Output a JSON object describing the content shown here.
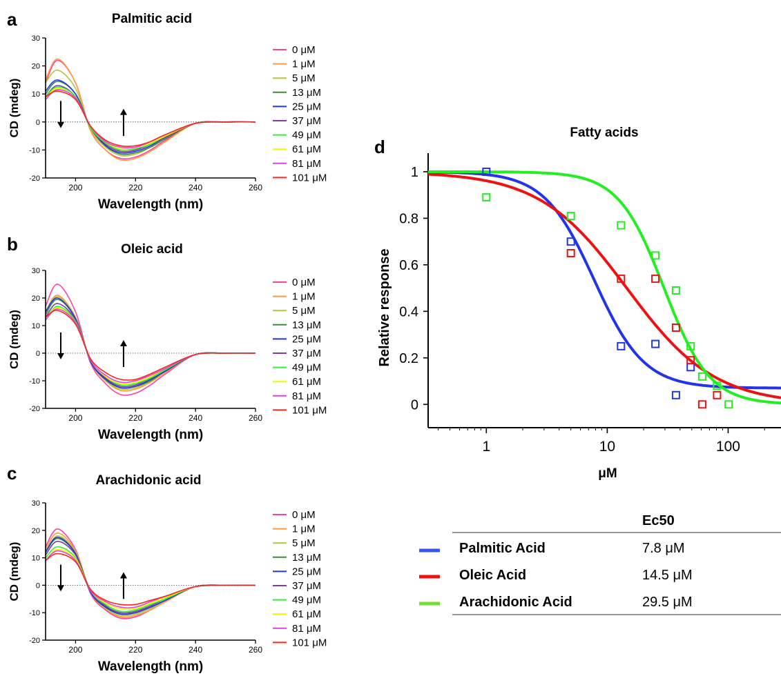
{
  "panels": [
    {
      "letter": "a",
      "title": "Palmitic acid"
    },
    {
      "letter": "b",
      "title": "Oleic acid"
    },
    {
      "letter": "c",
      "title": "Arachidonic acid"
    },
    {
      "letter": "d",
      "title": "Fatty acids"
    }
  ],
  "legend_colors": [
    "#ff3ea5",
    "#ff9a3c",
    "#b8c23a",
    "#3b8a3b",
    "#2233dd",
    "#7a3c9c",
    "#33ee33",
    "#f5f500",
    "#dd44dd",
    "#ff2222"
  ],
  "ec50_table": {
    "header": "Ec50",
    "rows": [
      {
        "name": "Palmitic Acid",
        "value": "7.8 μM",
        "color": "#3355ee"
      },
      {
        "name": "Oleic Acid",
        "value": "14.5 μM",
        "color": "#ee1111"
      },
      {
        "name": "Arachidonic Acid",
        "value": "29.5 μM",
        "color": "#77dd33"
      }
    ]
  },
  "chart_data": [
    {
      "type": "line",
      "panel": "a",
      "title": "Palmitic acid",
      "xlabel": "Wavelength (nm)",
      "ylabel": "CD (mdeg)",
      "xlim": [
        190,
        260
      ],
      "ylim": [
        -20,
        30
      ],
      "xticks": [
        200,
        220,
        240,
        260
      ],
      "yticks": [
        -20,
        -10,
        0,
        10,
        20,
        30
      ],
      "x": [
        190,
        194,
        200,
        205,
        210,
        215,
        220,
        225,
        230,
        240,
        250,
        260
      ],
      "series": [
        {
          "name": "0 μM",
          "values": [
            14,
            22,
            14,
            -3,
            -10,
            -13,
            -12.5,
            -10,
            -6.5,
            -0.5,
            0,
            0
          ]
        },
        {
          "name": "1 μM",
          "values": [
            15,
            22.5,
            14,
            -3,
            -10,
            -13.5,
            -13,
            -10.5,
            -7,
            -0.5,
            0,
            0
          ]
        },
        {
          "name": "5 μM",
          "values": [
            14,
            18.5,
            12,
            -2.5,
            -9,
            -12,
            -11.5,
            -9,
            -6,
            -0.5,
            0,
            0
          ]
        },
        {
          "name": "13 μM",
          "values": [
            10,
            14.5,
            10,
            -2,
            -8.5,
            -11.5,
            -11,
            -9,
            -6,
            -0.5,
            0,
            0
          ]
        },
        {
          "name": "25 μM",
          "values": [
            11,
            15,
            10,
            -2,
            -8.5,
            -11,
            -10.5,
            -8.5,
            -5.5,
            -0.5,
            0,
            0
          ]
        },
        {
          "name": "37 μM",
          "values": [
            9,
            13,
            9,
            -2,
            -8,
            -10.5,
            -10,
            -8,
            -5.5,
            -0.5,
            0,
            0
          ]
        },
        {
          "name": "49 μM",
          "values": [
            9,
            12.5,
            9,
            -2,
            -7.5,
            -10,
            -9.5,
            -8,
            -5,
            -0.5,
            0,
            0
          ]
        },
        {
          "name": "61 μM",
          "values": [
            8.5,
            12,
            8.5,
            -1.5,
            -7,
            -9.5,
            -9,
            -7.5,
            -5,
            -0.5,
            0,
            0
          ]
        },
        {
          "name": "81 μM",
          "values": [
            8,
            11.5,
            8.5,
            -1.5,
            -7,
            -9,
            -9,
            -7,
            -4.5,
            -0.5,
            0,
            0
          ]
        },
        {
          "name": "101 μM",
          "values": [
            9,
            11,
            8,
            -1.5,
            -6.5,
            -8.5,
            -8.5,
            -7,
            -4.5,
            -0.5,
            0,
            0
          ]
        }
      ]
    },
    {
      "type": "line",
      "panel": "b",
      "title": "Oleic acid",
      "xlabel": "Wavelength (nm)",
      "ylabel": "CD (mdeg)",
      "xlim": [
        190,
        260
      ],
      "ylim": [
        -20,
        30
      ],
      "xticks": [
        200,
        220,
        240,
        260
      ],
      "yticks": [
        -20,
        -10,
        0,
        10,
        20,
        30
      ],
      "x": [
        190,
        194,
        200,
        205,
        210,
        215,
        220,
        225,
        230,
        240,
        250,
        260
      ],
      "series": [
        {
          "name": "0 μM",
          "values": [
            17,
            25,
            15,
            -3.5,
            -11,
            -15,
            -14.5,
            -11.5,
            -7.5,
            -0.5,
            0,
            0
          ]
        },
        {
          "name": "1 μM",
          "values": [
            15,
            21,
            13,
            -3,
            -10,
            -13.5,
            -13,
            -10.5,
            -7,
            -0.5,
            0,
            0
          ]
        },
        {
          "name": "5 μM",
          "values": [
            15,
            20.5,
            13,
            -3,
            -10,
            -13,
            -12.5,
            -10,
            -6.5,
            -0.5,
            0,
            0
          ]
        },
        {
          "name": "13 μM",
          "values": [
            14,
            19.5,
            12.5,
            -3,
            -9.5,
            -12.5,
            -12,
            -10,
            -6.5,
            -0.5,
            0,
            0
          ]
        },
        {
          "name": "25 μM",
          "values": [
            15,
            20,
            12.5,
            -3,
            -9.5,
            -12.5,
            -12,
            -9.5,
            -6.5,
            -0.5,
            0,
            0
          ]
        },
        {
          "name": "37 μM",
          "values": [
            13,
            18,
            12,
            -2.5,
            -9,
            -12,
            -11.5,
            -9,
            -6,
            -0.5,
            0,
            0
          ]
        },
        {
          "name": "49 μM",
          "values": [
            12,
            17,
            11.5,
            -2.5,
            -8.5,
            -11.5,
            -11,
            -9,
            -6,
            -0.5,
            0,
            0
          ]
        },
        {
          "name": "61 μM",
          "values": [
            12,
            16.5,
            11,
            -2.5,
            -8.5,
            -11,
            -10.5,
            -8.5,
            -5.5,
            -0.5,
            0,
            0
          ]
        },
        {
          "name": "81 μM",
          "values": [
            12,
            16,
            11,
            -2.5,
            -8,
            -10.5,
            -10,
            -8,
            -5.5,
            -0.5,
            0,
            0
          ]
        },
        {
          "name": "101 μM",
          "values": [
            13,
            15.5,
            10.5,
            -2,
            -7,
            -9.5,
            -9.5,
            -7.5,
            -5,
            -0.5,
            0,
            0
          ]
        }
      ]
    },
    {
      "type": "line",
      "panel": "c",
      "title": "Arachidonic acid",
      "xlabel": "Wavelength (nm)",
      "ylabel": "CD (mdeg)",
      "xlim": [
        190,
        260
      ],
      "ylim": [
        -20,
        30
      ],
      "xticks": [
        200,
        220,
        240,
        260
      ],
      "yticks": [
        -20,
        -10,
        0,
        10,
        20,
        30
      ],
      "x": [
        190,
        194,
        200,
        205,
        210,
        215,
        220,
        225,
        230,
        240,
        250,
        260
      ],
      "series": [
        {
          "name": "0 μM",
          "values": [
            14,
            20.5,
            13,
            -3,
            -9,
            -12,
            -11.5,
            -9,
            -6,
            -0.5,
            0,
            0
          ]
        },
        {
          "name": "1 μM",
          "values": [
            13,
            19,
            12.5,
            -2.5,
            -8.5,
            -11.5,
            -11,
            -9,
            -6,
            -0.5,
            0,
            0
          ]
        },
        {
          "name": "5 μM",
          "values": [
            12,
            18,
            12,
            -2.5,
            -8.5,
            -11,
            -10.5,
            -8.5,
            -5.5,
            -0.5,
            0,
            0
          ]
        },
        {
          "name": "13 μM",
          "values": [
            12,
            17,
            11.5,
            -2.5,
            -8,
            -10.5,
            -10,
            -8,
            -5.5,
            -0.5,
            0,
            0
          ]
        },
        {
          "name": "25 μM",
          "values": [
            12,
            17.5,
            11.5,
            -2.5,
            -8,
            -10.5,
            -10,
            -8,
            -5.5,
            -0.5,
            0,
            0
          ]
        },
        {
          "name": "37 μM",
          "values": [
            11,
            16,
            11,
            -2,
            -7.5,
            -10,
            -9.5,
            -7.5,
            -5,
            -0.5,
            0,
            0
          ]
        },
        {
          "name": "49 μM",
          "values": [
            10,
            14,
            10,
            -2,
            -7,
            -9.5,
            -9,
            -7,
            -5,
            -0.5,
            0,
            0
          ]
        },
        {
          "name": "61 μM",
          "values": [
            9,
            13,
            9.5,
            -2,
            -6.5,
            -8.5,
            -8.5,
            -6.5,
            -4.5,
            -0.5,
            0,
            0
          ]
        },
        {
          "name": "81 μM",
          "values": [
            9,
            12.5,
            9,
            -2,
            -6,
            -8,
            -8,
            -6,
            -4,
            -0.5,
            0,
            0
          ]
        },
        {
          "name": "101 μM",
          "values": [
            9,
            11.5,
            8.5,
            -1.5,
            -5.5,
            -7,
            -7,
            -5.5,
            -4,
            -0.5,
            0,
            0
          ]
        }
      ]
    },
    {
      "type": "scatter",
      "panel": "d",
      "title": "Fatty acids",
      "xlabel": "μM",
      "ylabel": "Relative response",
      "xscale": "log",
      "xlim": [
        0.33,
        300
      ],
      "ylim": [
        -0.1,
        1.08
      ],
      "xticks": [
        1,
        10,
        100
      ],
      "xtick_labels": [
        "1",
        "10",
        "100"
      ],
      "yticks": [
        0,
        0.2,
        0.4,
        0.6,
        0.8,
        1
      ],
      "ytick_labels": [
        "0",
        "0.2",
        "0.4",
        "0.6",
        "0.8",
        "1"
      ],
      "series": [
        {
          "name": "Palmitic Acid",
          "color": "#2233ee",
          "points": [
            [
              1,
              1.0
            ],
            [
              5,
              0.7
            ],
            [
              13,
              0.25
            ],
            [
              25,
              0.26
            ],
            [
              37,
              0.04
            ],
            [
              49,
              0.16
            ]
          ],
          "fit": {
            "ec50": 7.8,
            "hill": 2.1,
            "bottom": 0.07,
            "top": 1.0
          }
        },
        {
          "name": "Oleic Acid",
          "color": "#ee1111",
          "points": [
            [
              5,
              0.65
            ],
            [
              13,
              0.54
            ],
            [
              25,
              0.54
            ],
            [
              37,
              0.33
            ],
            [
              49,
              0.19
            ],
            [
              61,
              0.0
            ],
            [
              81,
              0.04
            ]
          ],
          "fit": {
            "ec50": 14.5,
            "hill": 1.2,
            "bottom": 0.0,
            "top": 1.0
          }
        },
        {
          "name": "Arachidonic Acid",
          "color": "#22ee22",
          "points": [
            [
              1,
              0.89
            ],
            [
              5,
              0.81
            ],
            [
              13,
              0.77
            ],
            [
              25,
              0.64
            ],
            [
              37,
              0.49
            ],
            [
              49,
              0.25
            ],
            [
              61,
              0.12
            ],
            [
              81,
              0.08
            ],
            [
              101,
              0.0
            ]
          ],
          "fit": {
            "ec50": 29.5,
            "hill": 2.3,
            "bottom": 0.0,
            "top": 1.0
          }
        }
      ]
    }
  ]
}
